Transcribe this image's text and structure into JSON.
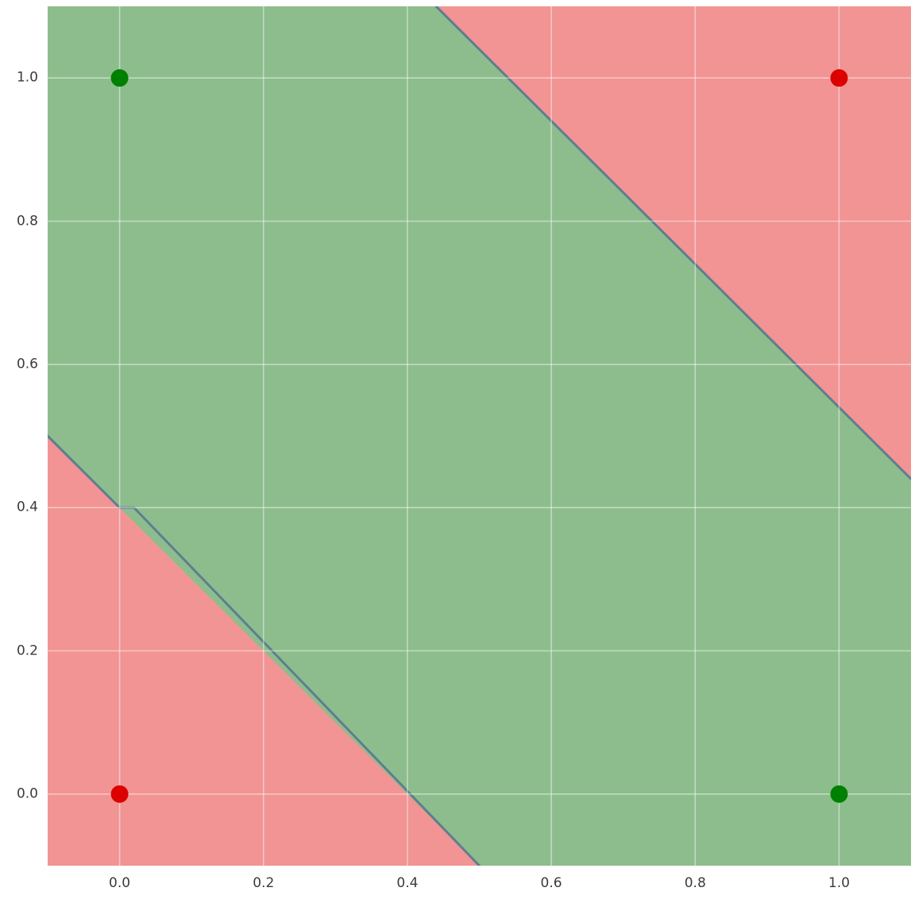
{
  "chart_data": {
    "type": "scatter",
    "title": "",
    "description": "XOR classification decision regions: diagonal green band between two linear decision boundaries, red regions in lower-left and upper-right corners, with four class points",
    "x_range": [
      -0.1,
      1.1
    ],
    "y_range": [
      -0.1,
      1.1
    ],
    "x_ticks": [
      0.0,
      0.2,
      0.4,
      0.6,
      0.8,
      1.0
    ],
    "y_ticks": [
      0.0,
      0.2,
      0.4,
      0.6,
      0.8,
      1.0
    ],
    "x_tick_labels": [
      "0.0",
      "0.2",
      "0.4",
      "0.6",
      "0.8",
      "1.0"
    ],
    "y_tick_labels": [
      "0.0",
      "0.2",
      "0.4",
      "0.6",
      "0.8",
      "1.0"
    ],
    "grid": true,
    "legend": "none",
    "points": [
      {
        "x": 0,
        "y": 0,
        "class": "red"
      },
      {
        "x": 1,
        "y": 1,
        "class": "red"
      },
      {
        "x": 0,
        "y": 1,
        "class": "green"
      },
      {
        "x": 1,
        "y": 0,
        "class": "green"
      }
    ],
    "point_radius_px": 11,
    "regions": {
      "green_band": "region where 0.4 < x + y < 1.54",
      "red_polygons": [
        [
          [
            -0.1,
            -0.1
          ],
          [
            0.5,
            -0.1
          ],
          [
            -0.1,
            0.5
          ]
        ],
        [
          [
            0.44,
            1.1
          ],
          [
            1.1,
            1.1
          ],
          [
            1.1,
            0.44
          ]
        ]
      ]
    },
    "boundaries": [
      [
        [
          -0.1,
          0.5
        ],
        [
          0.0,
          0.4
        ],
        [
          0.02,
          0.4
        ],
        [
          0.5,
          -0.1
        ]
      ],
      [
        [
          0.44,
          1.1
        ],
        [
          1.1,
          0.44
        ]
      ]
    ],
    "colors": {
      "region_green": "#8dbd8d",
      "region_red": "#f19493",
      "boundary_line": "#5f7e8f",
      "grid": "rgba(255,255,255,0.45)",
      "point_red": "#dd0000",
      "point_green": "#008000",
      "tick_text": "#3b3b3b",
      "figure_background": "#ffffff"
    }
  }
}
